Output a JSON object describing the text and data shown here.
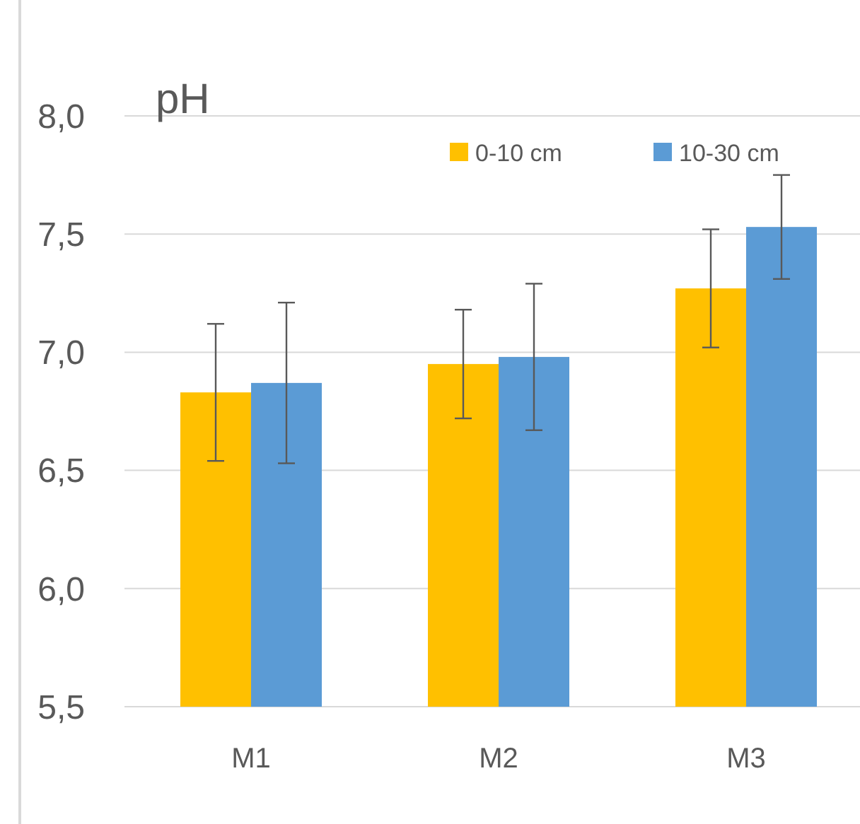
{
  "chart_data": {
    "type": "bar",
    "title": "pH",
    "categories": [
      "M1",
      "M2",
      "M3"
    ],
    "series": [
      {
        "name": "0-10 cm",
        "color": "#ffc000",
        "values": [
          6.83,
          6.95,
          7.27
        ],
        "errors": [
          0.29,
          0.23,
          0.25
        ]
      },
      {
        "name": "10-30 cm",
        "color": "#5b9bd5",
        "values": [
          6.87,
          6.98,
          7.53
        ],
        "errors": [
          0.34,
          0.31,
          0.22
        ]
      }
    ],
    "ylim": [
      5.5,
      8.0
    ],
    "yticks": [
      {
        "value": 5.5,
        "label": "5,5"
      },
      {
        "value": 6.0,
        "label": "6,0"
      },
      {
        "value": 6.5,
        "label": "6,5"
      },
      {
        "value": 7.0,
        "label": "7,0"
      },
      {
        "value": 7.5,
        "label": "7,5"
      },
      {
        "value": 8.0,
        "label": "8,0"
      }
    ],
    "grid": "y",
    "legend": "top right"
  }
}
